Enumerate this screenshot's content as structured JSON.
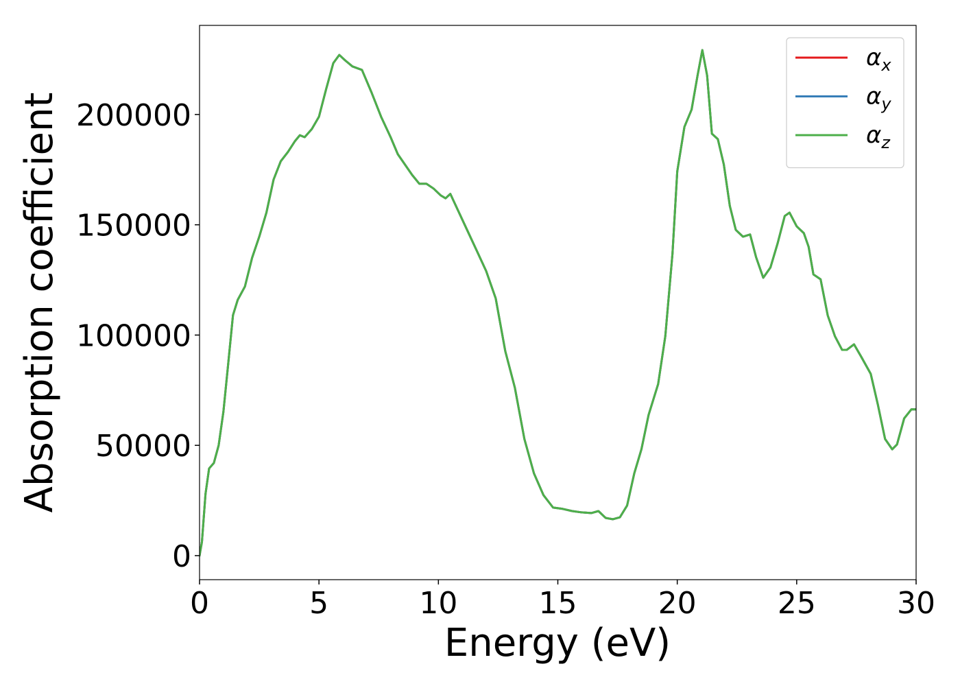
{
  "chart_data": {
    "type": "line",
    "xlabel": "Energy (eV)",
    "ylabel": "Absorption coefficient",
    "x": [
      0,
      0.1,
      0.25,
      0.4,
      0.6,
      0.8,
      1.0,
      1.2,
      1.4,
      1.6,
      1.9,
      2.2,
      2.5,
      2.8,
      3.1,
      3.4,
      3.7,
      4.0,
      4.2,
      4.4,
      4.7,
      5.0,
      5.3,
      5.6,
      5.85,
      6.1,
      6.4,
      6.8,
      7.2,
      7.6,
      8.0,
      8.3,
      8.6,
      8.9,
      9.2,
      9.5,
      9.8,
      10.1,
      10.3,
      10.5,
      10.8,
      11.2,
      11.6,
      12.0,
      12.4,
      12.8,
      13.2,
      13.6,
      14.0,
      14.4,
      14.8,
      15.2,
      15.6,
      16.0,
      16.4,
      16.7,
      17.0,
      17.3,
      17.6,
      17.9,
      18.2,
      18.5,
      18.8,
      19.2,
      19.5,
      19.8,
      20.0,
      20.3,
      20.6,
      20.85,
      21.05,
      21.25,
      21.45,
      21.7,
      21.95,
      22.2,
      22.45,
      22.75,
      23.05,
      23.3,
      23.6,
      23.9,
      24.2,
      24.5,
      24.7,
      25.0,
      25.3,
      25.5,
      25.7,
      26.0,
      26.3,
      26.6,
      26.9,
      27.1,
      27.4,
      27.7,
      28.1,
      28.4,
      28.7,
      29.0,
      29.2,
      29.5,
      29.8,
      30.0
    ],
    "series": [
      {
        "name": "αx",
        "color": "#e41a1c",
        "values": [
          0,
          6200,
          28000,
          39500,
          42000,
          50000,
          65300,
          87000,
          109000,
          116000,
          122000,
          135000,
          144600,
          155500,
          170500,
          178800,
          183000,
          188000,
          190600,
          189700,
          193400,
          199000,
          211500,
          223300,
          227000,
          224500,
          221800,
          220200,
          210000,
          199000,
          189700,
          182000,
          177300,
          172600,
          168600,
          168600,
          166400,
          163300,
          162000,
          164000,
          157000,
          147700,
          138400,
          129000,
          116600,
          92700,
          76200,
          52900,
          37300,
          27400,
          21800,
          21200,
          20200,
          19600,
          19300,
          20200,
          17100,
          16500,
          17400,
          22700,
          37300,
          48200,
          63800,
          77800,
          99500,
          136900,
          174200,
          194400,
          202200,
          217700,
          229200,
          217700,
          191300,
          188800,
          177300,
          158600,
          147700,
          144600,
          145600,
          135300,
          126000,
          130600,
          141500,
          154000,
          155500,
          149300,
          146200,
          140000,
          127500,
          125300,
          108900,
          99500,
          93300,
          93300,
          95800,
          90200,
          82400,
          68400,
          52900,
          48200,
          50400,
          62200,
          66300,
          66300
        ]
      },
      {
        "name": "αy",
        "color": "#377eb8",
        "values": [
          0,
          6200,
          28000,
          39500,
          42000,
          50000,
          65300,
          87000,
          109000,
          116000,
          122000,
          135000,
          144600,
          155500,
          170500,
          178800,
          183000,
          188000,
          190600,
          189700,
          193400,
          199000,
          211500,
          223300,
          227000,
          224500,
          221800,
          220200,
          210000,
          199000,
          189700,
          182000,
          177300,
          172600,
          168600,
          168600,
          166400,
          163300,
          162000,
          164000,
          157000,
          147700,
          138400,
          129000,
          116600,
          92700,
          76200,
          52900,
          37300,
          27400,
          21800,
          21200,
          20200,
          19600,
          19300,
          20200,
          17100,
          16500,
          17400,
          22700,
          37300,
          48200,
          63800,
          77800,
          99500,
          136900,
          174200,
          194400,
          202200,
          217700,
          229200,
          217700,
          191300,
          188800,
          177300,
          158600,
          147700,
          144600,
          145600,
          135300,
          126000,
          130600,
          141500,
          154000,
          155500,
          149300,
          146200,
          140000,
          127500,
          125300,
          108900,
          99500,
          93300,
          93300,
          95800,
          90200,
          82400,
          68400,
          52900,
          48200,
          50400,
          62200,
          66300,
          66300
        ]
      },
      {
        "name": "αz",
        "color": "#4daf4a",
        "values": [
          0,
          6200,
          28000,
          39500,
          42000,
          50000,
          65300,
          87000,
          109000,
          116000,
          122000,
          135000,
          144600,
          155500,
          170500,
          178800,
          183000,
          188000,
          190600,
          189700,
          193400,
          199000,
          211500,
          223300,
          227000,
          224500,
          221800,
          220200,
          210000,
          199000,
          189700,
          182000,
          177300,
          172600,
          168600,
          168600,
          166400,
          163300,
          162000,
          164000,
          157000,
          147700,
          138400,
          129000,
          116600,
          92700,
          76200,
          52900,
          37300,
          27400,
          21800,
          21200,
          20200,
          19600,
          19300,
          20200,
          17100,
          16500,
          17400,
          22700,
          37300,
          48200,
          63800,
          77800,
          99500,
          136900,
          174200,
          194400,
          202200,
          217700,
          229200,
          217700,
          191300,
          188800,
          177300,
          158600,
          147700,
          144600,
          145600,
          135300,
          126000,
          130600,
          141500,
          154000,
          155500,
          149300,
          146200,
          140000,
          127500,
          125300,
          108900,
          99500,
          93300,
          93300,
          95800,
          90200,
          82400,
          68400,
          52900,
          48200,
          50400,
          62200,
          66300,
          66300
        ]
      }
    ],
    "xlim": [
      0,
      30
    ],
    "xticks": [
      0,
      5,
      10,
      15,
      20,
      25,
      30
    ],
    "ylim": [
      -10900,
      240400
    ],
    "yticks": [
      0,
      50000,
      100000,
      150000,
      200000
    ],
    "grid": false,
    "legend": "upper right"
  }
}
